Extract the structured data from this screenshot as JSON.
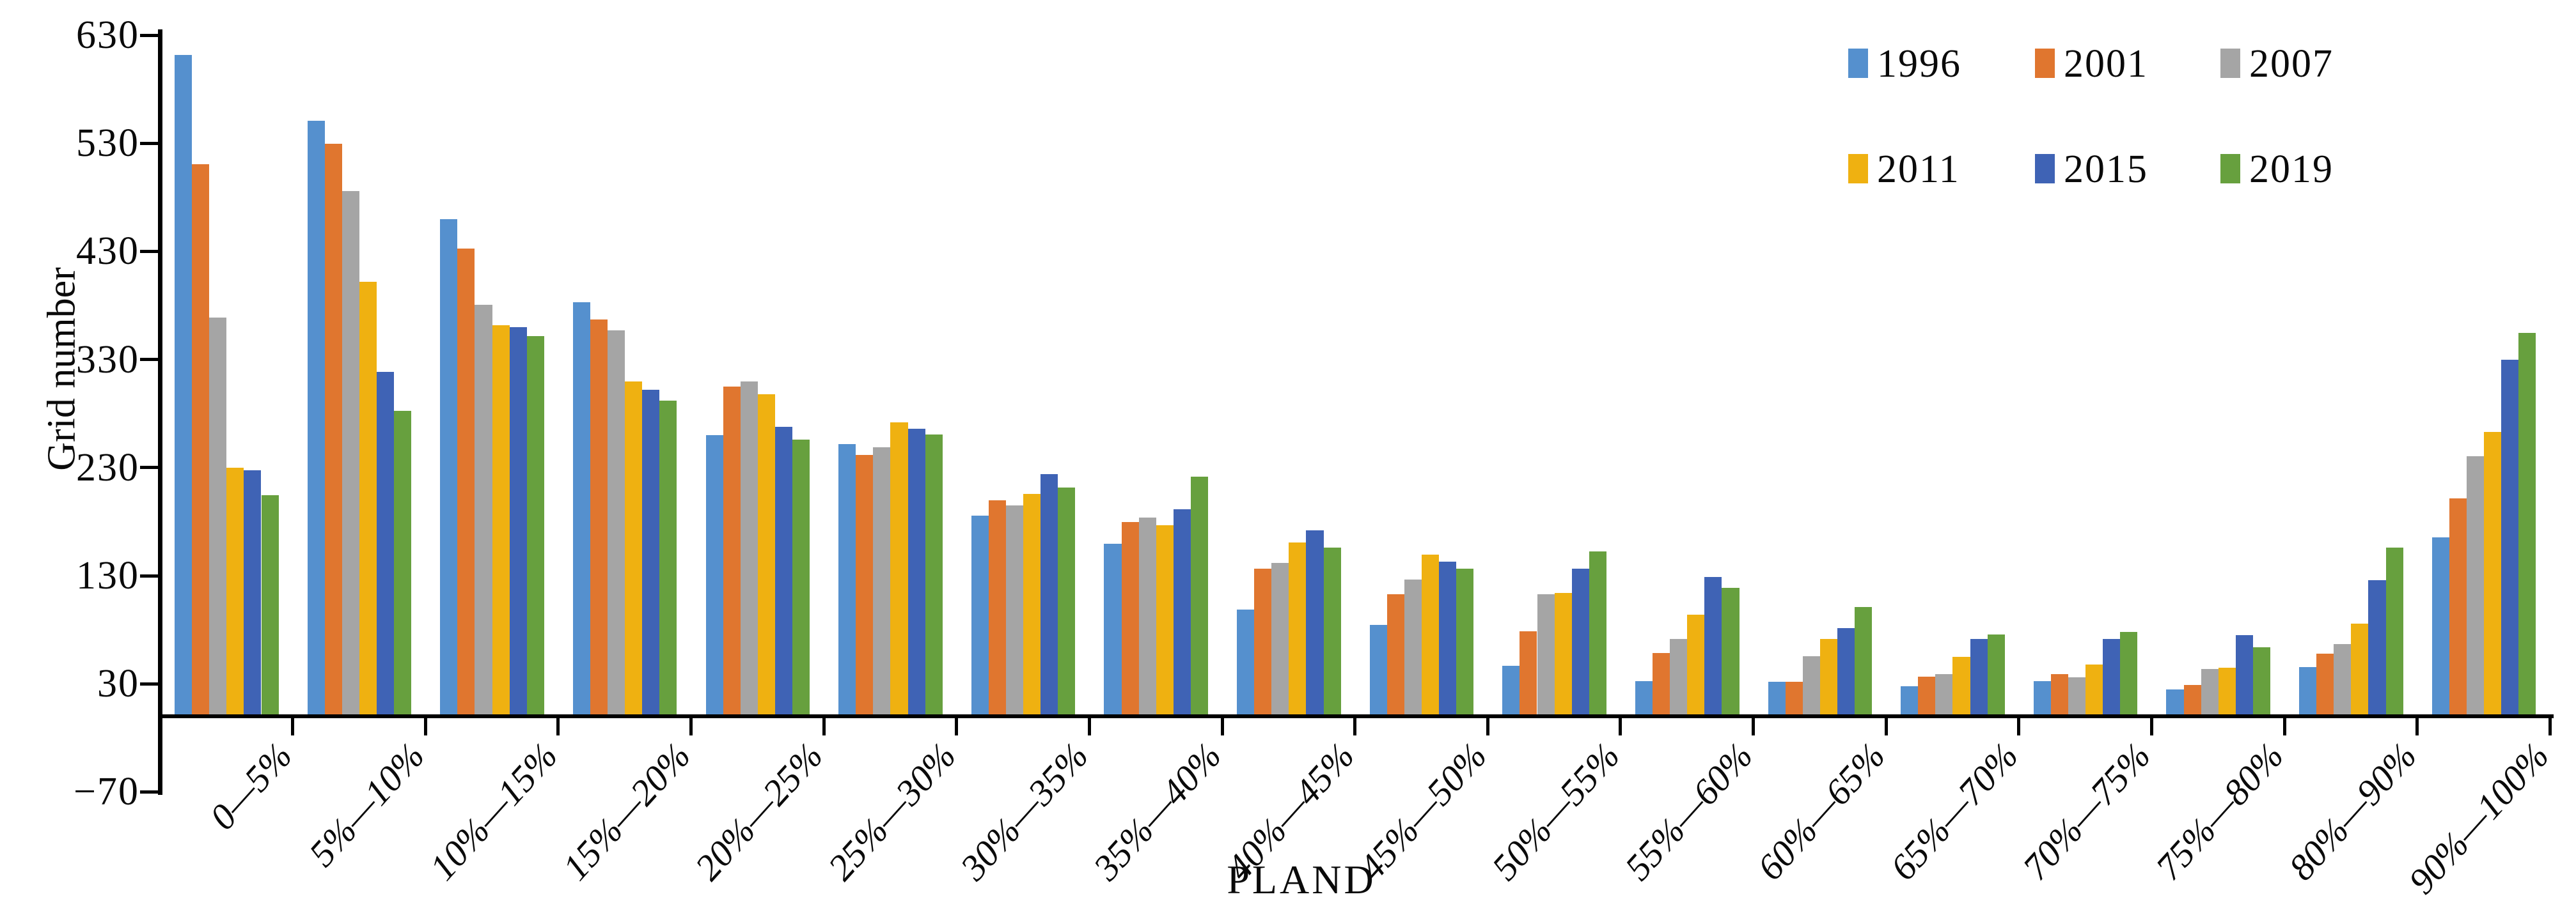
{
  "figure": {
    "y_axis_title": "Grid number",
    "x_axis_title": "PLAND"
  },
  "legend": {
    "position": "top-right",
    "entries": [
      {
        "label": "1996",
        "color": "#5590CE"
      },
      {
        "label": "2001",
        "color": "#E0762F"
      },
      {
        "label": "2007",
        "color": "#A5A5A5"
      },
      {
        "label": "2011",
        "color": "#EFB111"
      },
      {
        "label": "2015",
        "color": "#3F63B5"
      },
      {
        "label": "2019",
        "color": "#67A03E"
      }
    ]
  },
  "chart_data": {
    "type": "bar",
    "title": "",
    "xlabel": "PLAND",
    "ylabel": "Grid number",
    "ylim": [
      -70,
      630
    ],
    "ytick_interval": 100,
    "yticks": [
      630,
      530,
      430,
      330,
      230,
      130,
      30,
      -70
    ],
    "ytick_labels": [
      "630",
      "530",
      "430",
      "330",
      "230",
      "130",
      "30",
      "−70"
    ],
    "grid": false,
    "legend_position": "top-right",
    "bar_baseline": 0,
    "categories": [
      "0—5%",
      "5%—10%",
      "10%—15%",
      "15%—20%",
      "20%—25%",
      "25%—30%",
      "30%—35%",
      "35%—40%",
      "40%—45%",
      "45%—50%",
      "50%—55%",
      "55%—60%",
      "60%—65%",
      "65%—70%",
      "70%—75%",
      "75%—80%",
      "80%—90%",
      "90%—100%"
    ],
    "series": [
      {
        "name": "1996",
        "color": "#5590CE",
        "values": [
          610,
          549,
          458,
          381,
          258,
          250,
          184,
          158,
          97,
          83,
          45,
          31,
          30,
          26,
          31,
          23,
          44,
          164
        ]
      },
      {
        "name": "2001",
        "color": "#E0762F",
        "values": [
          509,
          528,
          431,
          365,
          303,
          240,
          198,
          178,
          135,
          111,
          77,
          57,
          30,
          35,
          37,
          27,
          56,
          200
        ]
      },
      {
        "name": "2007",
        "color": "#A5A5A5",
        "values": [
          367,
          484,
          379,
          355,
          308,
          247,
          193,
          182,
          140,
          125,
          111,
          70,
          54,
          37,
          34,
          42,
          65,
          239
        ]
      },
      {
        "name": "2011",
        "color": "#EFB111",
        "values": [
          228,
          400,
          360,
          308,
          296,
          270,
          204,
          175,
          159,
          148,
          112,
          92,
          70,
          53,
          46,
          43,
          84,
          261
        ]
      },
      {
        "name": "2015",
        "color": "#3F63B5",
        "values": [
          226,
          317,
          358,
          300,
          266,
          264,
          222,
          190,
          170,
          141,
          135,
          127,
          80,
          70,
          70,
          73,
          124,
          328
        ]
      },
      {
        "name": "2019",
        "color": "#67A03E",
        "values": [
          203,
          281,
          350,
          290,
          254,
          259,
          210,
          220,
          154,
          135,
          151,
          117,
          99,
          74,
          76,
          62,
          154,
          353
        ]
      }
    ]
  }
}
